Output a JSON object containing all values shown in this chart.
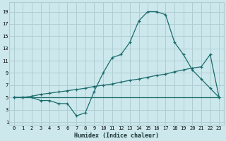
{
  "xlabel": "Humidex (Indice chaleur)",
  "bg_color": "#cce8ec",
  "grid_color": "#b0ced2",
  "line_color": "#1a6b6b",
  "x_ticks": [
    0,
    1,
    2,
    3,
    4,
    5,
    6,
    7,
    8,
    9,
    10,
    11,
    12,
    13,
    14,
    15,
    16,
    17,
    18,
    19,
    20,
    21,
    22,
    23
  ],
  "y_ticks": [
    1,
    3,
    5,
    7,
    9,
    11,
    13,
    15,
    17,
    19
  ],
  "xlim": [
    -0.5,
    23.5
  ],
  "ylim": [
    0.5,
    20.5
  ],
  "line1_x": [
    0,
    1,
    2,
    3,
    4,
    5,
    6,
    7,
    8,
    9,
    10,
    11,
    12,
    13,
    14,
    15,
    16,
    17,
    18,
    19,
    20,
    21,
    22,
    23
  ],
  "line1_y": [
    5,
    5,
    5,
    4.5,
    4.5,
    4,
    4,
    2,
    2.5,
    6,
    9,
    11.5,
    12,
    14,
    17.5,
    19,
    19,
    18.5,
    14,
    12,
    9.5,
    8,
    6.5,
    5
  ],
  "line2_x": [
    0,
    1,
    2,
    3,
    4,
    5,
    6,
    7,
    8,
    9,
    10,
    11,
    12,
    13,
    14,
    15,
    16,
    17,
    18,
    19,
    20,
    21,
    22,
    23
  ],
  "line2_y": [
    5,
    5,
    5.2,
    5.5,
    5.7,
    5.9,
    6.1,
    6.3,
    6.5,
    6.8,
    7,
    7.2,
    7.5,
    7.8,
    8,
    8.3,
    8.6,
    8.8,
    9.2,
    9.5,
    9.8,
    10,
    12,
    5
  ],
  "line3_x": [
    0,
    23
  ],
  "line3_y": [
    5,
    5
  ]
}
